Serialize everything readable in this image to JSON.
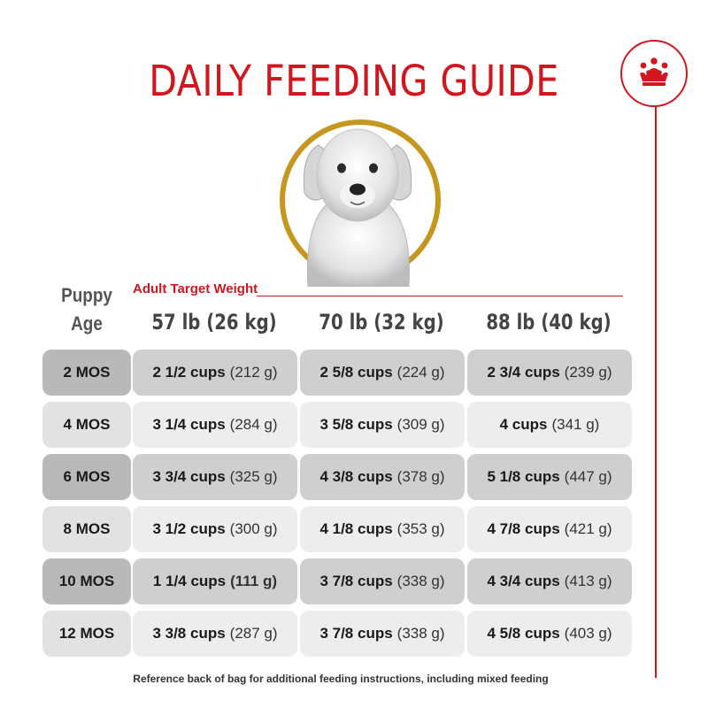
{
  "header": {
    "title": "DAILY FEEDING GUIDE"
  },
  "brand": {
    "logo_icon": "crown-icon",
    "accent_color": "#d0171f",
    "ring_color": "#c5971e"
  },
  "table": {
    "age_header_line1": "Puppy",
    "age_header_line2": "Age",
    "target_label": "Adult Target Weight",
    "columns": [
      "57 lb (26 kg)",
      "70 lb (32 kg)",
      "88 lb (40 kg)"
    ],
    "rows": [
      {
        "age": "2 MOS",
        "cells": [
          {
            "cups": "2 1/2 cups",
            "grams": "(212 g)"
          },
          {
            "cups": "2 5/8 cups",
            "grams": "(224 g)"
          },
          {
            "cups": "2 3/4 cups",
            "grams": "(239 g)"
          }
        ]
      },
      {
        "age": "4 MOS",
        "cells": [
          {
            "cups": "3 1/4 cups",
            "grams": "(284 g)"
          },
          {
            "cups": "3 5/8 cups",
            "grams": "(309 g)"
          },
          {
            "cups": "4 cups",
            "grams": "(341 g)"
          }
        ]
      },
      {
        "age": "6 MOS",
        "cells": [
          {
            "cups": "3 3/4 cups",
            "grams": "(325 g)"
          },
          {
            "cups": "4 3/8 cups",
            "grams": "(378 g)"
          },
          {
            "cups": "5 1/8 cups",
            "grams": "(447 g)"
          }
        ]
      },
      {
        "age": "8 MOS",
        "cells": [
          {
            "cups": "3 1/2 cups",
            "grams": "(300 g)"
          },
          {
            "cups": "4 1/8 cups",
            "grams": "(353 g)"
          },
          {
            "cups": "4 7/8 cups",
            "grams": "(421 g)"
          }
        ]
      },
      {
        "age": "10 MOS",
        "cells": [
          {
            "cups": "1 1/4 cups",
            "grams": "(111 g)"
          },
          {
            "cups": "3 7/8 cups",
            "grams": "(338 g)"
          },
          {
            "cups": "4 3/4 cups",
            "grams": "(413 g)"
          }
        ]
      },
      {
        "age": "12 MOS",
        "cells": [
          {
            "cups": "3 3/8 cups",
            "grams": "(287 g)"
          },
          {
            "cups": "3 7/8 cups",
            "grams": "(338 g)"
          },
          {
            "cups": "4 5/8 cups",
            "grams": "(403 g)"
          }
        ]
      }
    ]
  },
  "footnote": "Reference back of bag for additional feeding instructions, including mixed feeding"
}
